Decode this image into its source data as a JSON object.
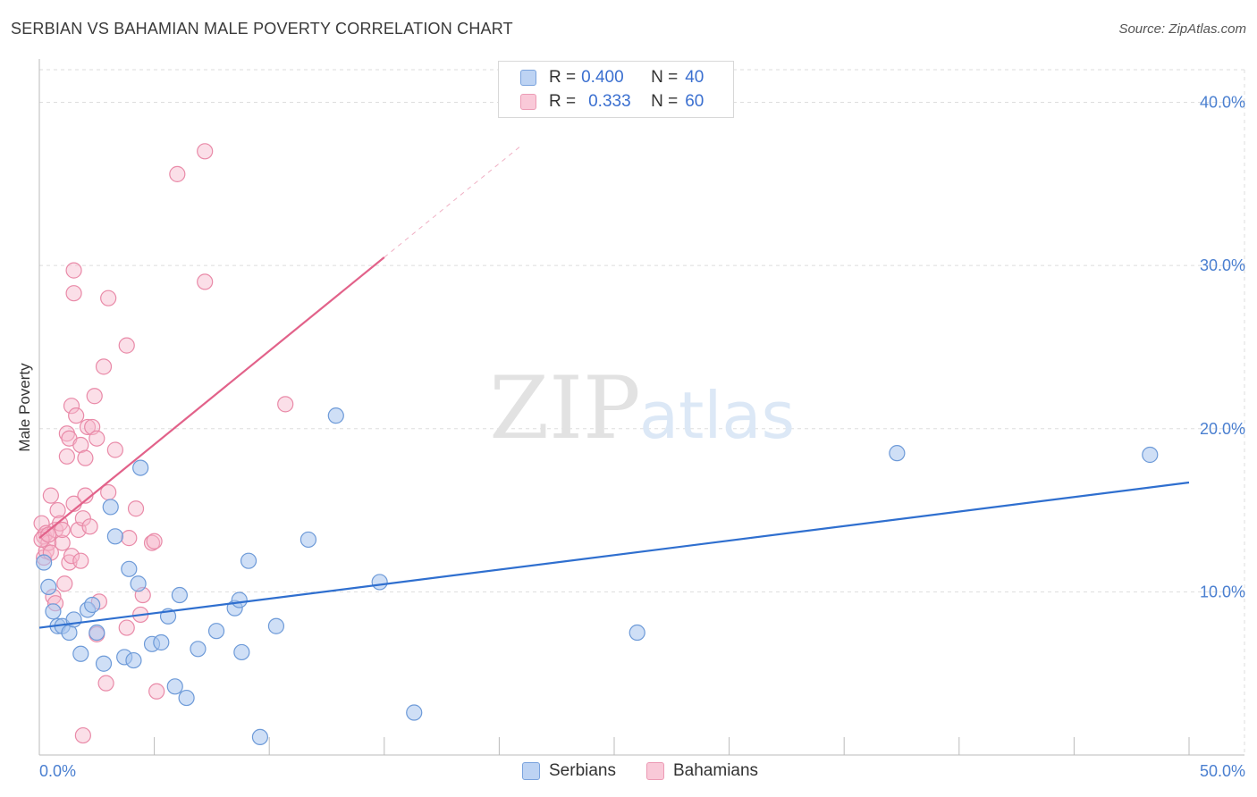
{
  "title": "SERBIAN VS BAHAMIAN MALE POVERTY CORRELATION CHART",
  "source": "Source: ZipAtlas.com",
  "watermark": {
    "zip": "ZIP",
    "atlas": "atlas"
  },
  "colors": {
    "serbian_fill": "#a8c4ee",
    "serbian_stroke": "#6d9ad8",
    "serbian_line": "#2f6fcf",
    "bahamian_fill": "#f6b8cb",
    "bahamian_stroke": "#e98aa8",
    "bahamian_line": "#e2628a",
    "grid": "#dddddd",
    "axis_tick_text": "#4a7fd0"
  },
  "legend": {
    "rows": [
      {
        "r_label": "R =",
        "r_value": "0.400",
        "n_label": "N =",
        "n_value": "40"
      },
      {
        "r_label": "R =",
        "r_value": "0.333",
        "n_label": "N =",
        "n_value": "60"
      }
    ]
  },
  "bottom_legend": {
    "serbians": "Serbians",
    "bahamians": "Bahamians"
  },
  "chart_data": {
    "type": "scatter",
    "title": "SERBIAN VS BAHAMIAN MALE POVERTY CORRELATION CHART",
    "xlabel": "",
    "ylabel": "Male Poverty",
    "xlim": [
      0,
      50
    ],
    "ylim": [
      0,
      42
    ],
    "x_tick_labels": [
      "0.0%",
      "50.0%"
    ],
    "y_ticks": [
      10,
      20,
      30,
      40
    ],
    "y_tick_labels": [
      "10.0%",
      "20.0%",
      "30.0%",
      "40.0%"
    ],
    "grid": true,
    "series": [
      {
        "name": "Serbians",
        "r": 0.4,
        "n": 40,
        "trend": {
          "x": [
            0,
            50
          ],
          "y": [
            7.8,
            16.7
          ],
          "style": "solid"
        },
        "points": [
          [
            0.2,
            11.8
          ],
          [
            0.4,
            10.3
          ],
          [
            0.6,
            8.8
          ],
          [
            0.8,
            7.9
          ],
          [
            1.0,
            7.9
          ],
          [
            1.3,
            7.5
          ],
          [
            1.5,
            8.3
          ],
          [
            1.8,
            6.2
          ],
          [
            2.1,
            8.9
          ],
          [
            2.3,
            9.2
          ],
          [
            2.5,
            7.5
          ],
          [
            2.8,
            5.6
          ],
          [
            3.1,
            15.2
          ],
          [
            3.3,
            13.4
          ],
          [
            3.7,
            6.0
          ],
          [
            3.9,
            11.4
          ],
          [
            4.1,
            5.8
          ],
          [
            4.3,
            10.5
          ],
          [
            4.4,
            17.6
          ],
          [
            4.9,
            6.8
          ],
          [
            5.3,
            6.9
          ],
          [
            5.6,
            8.5
          ],
          [
            5.9,
            4.2
          ],
          [
            6.1,
            9.8
          ],
          [
            6.4,
            3.5
          ],
          [
            6.9,
            6.5
          ],
          [
            7.7,
            7.6
          ],
          [
            8.5,
            9.0
          ],
          [
            8.7,
            9.5
          ],
          [
            8.8,
            6.3
          ],
          [
            9.1,
            11.9
          ],
          [
            9.6,
            1.1
          ],
          [
            10.3,
            7.9
          ],
          [
            11.7,
            13.2
          ],
          [
            12.9,
            20.8
          ],
          [
            14.8,
            10.6
          ],
          [
            16.3,
            2.6
          ],
          [
            26.0,
            7.5
          ],
          [
            37.3,
            18.5
          ],
          [
            48.3,
            18.4
          ]
        ]
      },
      {
        "name": "Bahamians",
        "r": 0.333,
        "n": 60,
        "trend": {
          "x": [
            0,
            15
          ],
          "y": [
            13.3,
            30.5
          ],
          "style": "solid",
          "extension": {
            "x": [
              15,
              21
            ],
            "y": [
              30.5,
              37.4
            ],
            "style": "dashed"
          }
        },
        "points": [
          [
            0.1,
            14.2
          ],
          [
            0.2,
            13.4
          ],
          [
            0.2,
            12.1
          ],
          [
            0.3,
            13.6
          ],
          [
            0.3,
            12.5
          ],
          [
            0.4,
            13.0
          ],
          [
            0.5,
            12.4
          ],
          [
            0.5,
            15.9
          ],
          [
            0.6,
            9.7
          ],
          [
            0.7,
            9.3
          ],
          [
            0.7,
            13.8
          ],
          [
            0.8,
            15.0
          ],
          [
            0.9,
            14.2
          ],
          [
            1.0,
            13.0
          ],
          [
            1.0,
            13.8
          ],
          [
            1.1,
            10.5
          ],
          [
            1.2,
            18.3
          ],
          [
            1.2,
            19.7
          ],
          [
            1.3,
            11.8
          ],
          [
            1.3,
            19.4
          ],
          [
            1.4,
            21.4
          ],
          [
            1.4,
            12.2
          ],
          [
            1.5,
            15.4
          ],
          [
            1.5,
            28.3
          ],
          [
            1.5,
            29.7
          ],
          [
            1.6,
            20.8
          ],
          [
            1.7,
            13.8
          ],
          [
            1.8,
            19.0
          ],
          [
            1.8,
            11.9
          ],
          [
            1.9,
            1.2
          ],
          [
            1.9,
            14.5
          ],
          [
            2.0,
            15.9
          ],
          [
            2.0,
            18.2
          ],
          [
            2.1,
            20.1
          ],
          [
            2.2,
            14.0
          ],
          [
            2.3,
            20.1
          ],
          [
            2.4,
            22.0
          ],
          [
            2.5,
            7.4
          ],
          [
            2.5,
            19.4
          ],
          [
            2.6,
            9.4
          ],
          [
            2.8,
            23.8
          ],
          [
            2.9,
            4.4
          ],
          [
            3.0,
            28.0
          ],
          [
            3.0,
            16.1
          ],
          [
            3.3,
            18.7
          ],
          [
            3.8,
            25.1
          ],
          [
            3.8,
            7.8
          ],
          [
            3.9,
            13.3
          ],
          [
            4.2,
            15.1
          ],
          [
            4.4,
            8.6
          ],
          [
            4.5,
            9.8
          ],
          [
            4.9,
            13.0
          ],
          [
            5.0,
            13.1
          ],
          [
            5.1,
            3.9
          ],
          [
            6.0,
            35.6
          ],
          [
            7.2,
            37.0
          ],
          [
            7.2,
            29.0
          ],
          [
            10.7,
            21.5
          ],
          [
            0.1,
            13.2
          ],
          [
            0.4,
            13.5
          ]
        ]
      }
    ]
  }
}
